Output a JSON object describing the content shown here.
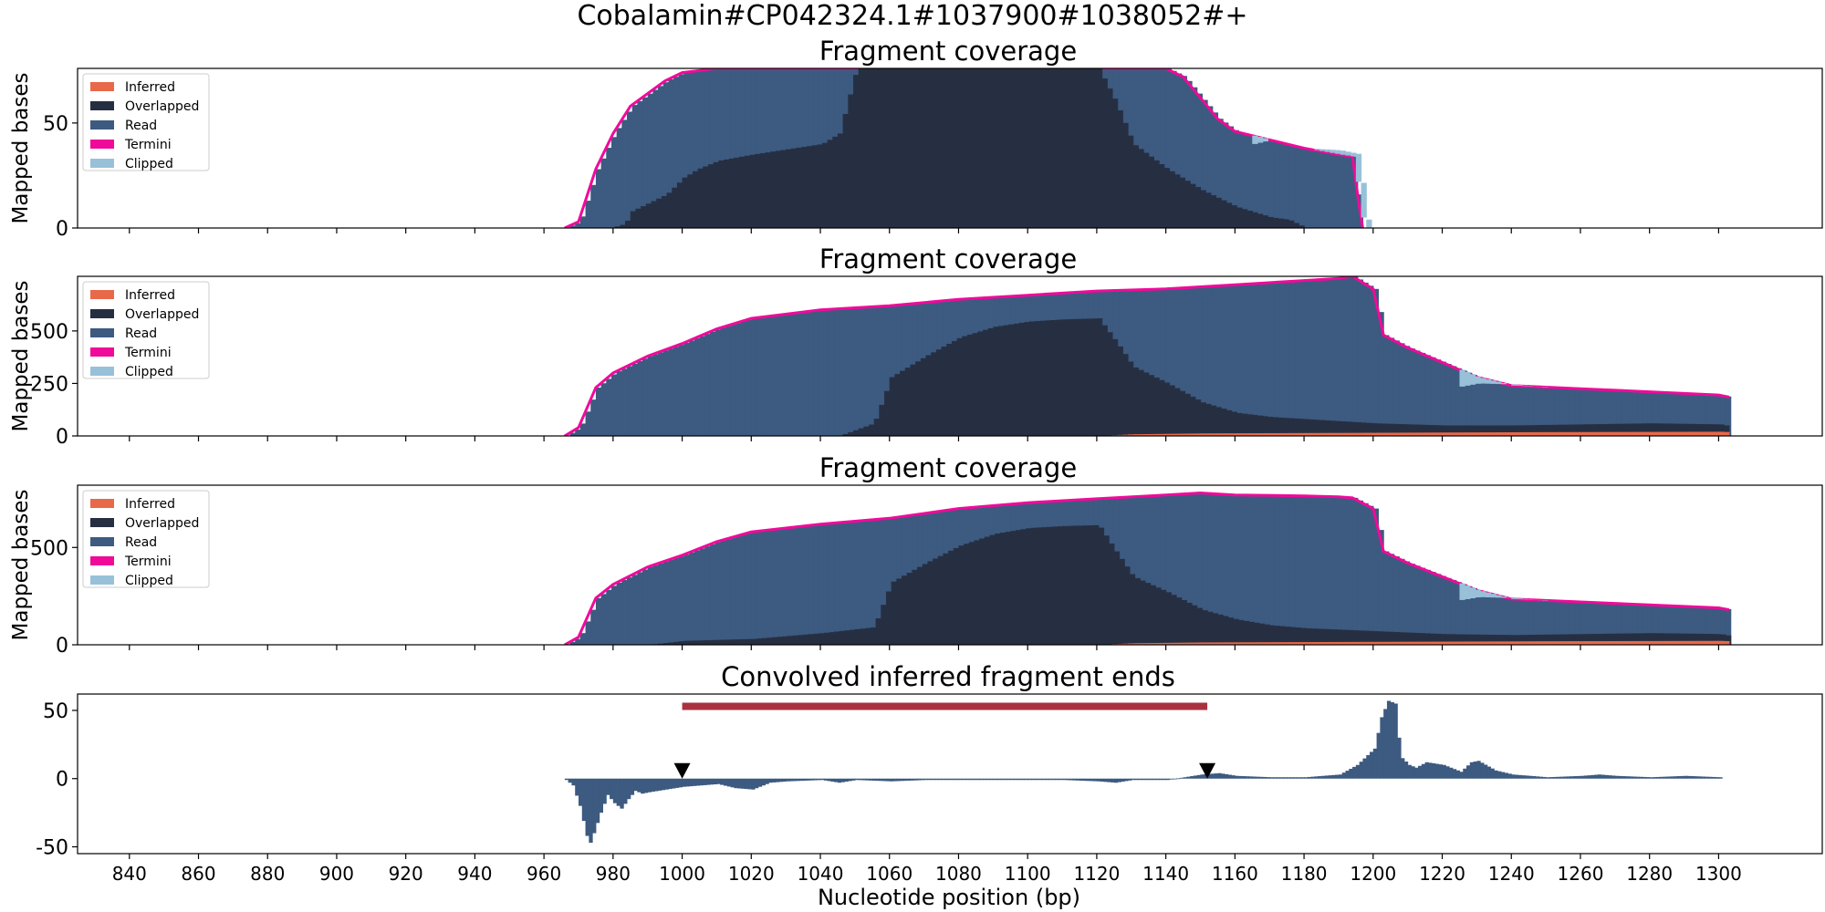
{
  "figure": {
    "suptitle": "Cobalamin#CP042324.1#1037900#1038052#+",
    "xlabel": "Nucleotide position (bp)"
  },
  "colors": {
    "inferred": "#e8694a",
    "overlapped": "#262f42",
    "read": "#3d5a80",
    "termini": "#f00a9a",
    "clipped": "#98c1d9",
    "peak_bar": "#a8323e",
    "marker": "#000000"
  },
  "chart_data": [
    {
      "type": "area",
      "title": "Fragment coverage",
      "ylabel": "Mapped bases",
      "xlim": [
        825,
        1330
      ],
      "ylim": [
        0,
        76
      ],
      "yticks": [
        0,
        50
      ],
      "legend": {
        "placement": "top-left",
        "entries": [
          "Inferred",
          "Overlapped",
          "Read",
          "Termini",
          "Clipped"
        ]
      },
      "series": [
        {
          "name": "Read",
          "x": [
            966,
            970,
            975,
            980,
            985,
            990,
            995,
            1000,
            1010,
            1020,
            1025,
            1050,
            1070,
            1100,
            1125,
            1135,
            1140,
            1145,
            1150,
            1155,
            1160,
            1170,
            1180,
            1190,
            1194,
            1196,
            1197
          ],
          "values": [
            0,
            3,
            28,
            45,
            58,
            64,
            70,
            74,
            76,
            76,
            76,
            76,
            76,
            76,
            76,
            76,
            76,
            72,
            62,
            52,
            46,
            42,
            38,
            35,
            34,
            10,
            0
          ]
        },
        {
          "name": "Overlapped",
          "x": [
            979,
            983,
            985,
            995,
            1000,
            1004,
            1010,
            1020,
            1040,
            1045,
            1050,
            1060,
            1100,
            1110,
            1120,
            1125,
            1130,
            1140,
            1150,
            1160,
            1170,
            1175,
            1180
          ],
          "values": [
            0,
            2,
            8,
            16,
            24,
            28,
            32,
            35,
            40,
            45,
            76,
            76,
            76,
            76,
            76,
            60,
            40,
            28,
            18,
            10,
            5,
            4,
            0
          ]
        },
        {
          "name": "Clipped",
          "x": [
            1165,
            1170,
            1180,
            1190,
            1196,
            1197,
            1199
          ],
          "values": [
            40,
            42,
            38,
            37,
            35,
            8,
            0
          ]
        }
      ]
    },
    {
      "type": "area",
      "title": "Fragment coverage",
      "ylabel": "Mapped bases",
      "xlim": [
        825,
        1330
      ],
      "ylim": [
        0,
        760
      ],
      "yticks": [
        0,
        250,
        500
      ],
      "legend": {
        "placement": "top-left",
        "entries": [
          "Inferred",
          "Overlapped",
          "Read",
          "Termini",
          "Clipped"
        ]
      },
      "series": [
        {
          "name": "Read",
          "x": [
            966,
            970,
            975,
            980,
            990,
            1000,
            1010,
            1020,
            1040,
            1060,
            1080,
            1100,
            1120,
            1140,
            1160,
            1180,
            1190,
            1194,
            1200,
            1203,
            1210,
            1220,
            1230,
            1240,
            1260,
            1280,
            1300,
            1303
          ],
          "values": [
            0,
            40,
            230,
            300,
            380,
            440,
            510,
            560,
            600,
            620,
            650,
            670,
            690,
            700,
            720,
            740,
            750,
            760,
            700,
            480,
            420,
            350,
            280,
            240,
            225,
            210,
            195,
            185
          ]
        },
        {
          "name": "Overlapped",
          "x": [
            1045,
            1050,
            1055,
            1060,
            1070,
            1080,
            1090,
            1100,
            1110,
            1120,
            1125,
            1130,
            1140,
            1150,
            1160,
            1170,
            1180,
            1200,
            1220,
            1240,
            1260,
            1280,
            1300,
            1303
          ],
          "values": [
            0,
            30,
            60,
            280,
            380,
            470,
            520,
            545,
            555,
            560,
            450,
            330,
            250,
            160,
            110,
            90,
            80,
            60,
            50,
            50,
            55,
            60,
            55,
            45
          ]
        },
        {
          "name": "Inferred",
          "x": [
            1120,
            1130,
            1150,
            1200,
            1250,
            1300,
            1303
          ],
          "values": [
            0,
            8,
            12,
            15,
            18,
            20,
            18
          ]
        },
        {
          "name": "Clipped",
          "x": [
            1225,
            1230,
            1240,
            1250
          ],
          "values": [
            235,
            250,
            245,
            230
          ]
        }
      ]
    },
    {
      "type": "area",
      "title": "Fragment coverage",
      "ylabel": "Mapped bases",
      "xlim": [
        825,
        1330
      ],
      "ylim": [
        0,
        820
      ],
      "yticks": [
        0,
        500
      ],
      "legend": {
        "placement": "top-left",
        "entries": [
          "Inferred",
          "Overlapped",
          "Read",
          "Termini",
          "Clipped"
        ]
      },
      "series": [
        {
          "name": "Read",
          "x": [
            966,
            970,
            975,
            980,
            990,
            1000,
            1010,
            1020,
            1040,
            1060,
            1080,
            1100,
            1120,
            1140,
            1150,
            1160,
            1180,
            1190,
            1194,
            1200,
            1203,
            1210,
            1220,
            1230,
            1240,
            1260,
            1280,
            1300,
            1303
          ],
          "values": [
            0,
            40,
            240,
            310,
            400,
            460,
            530,
            580,
            620,
            650,
            700,
            730,
            750,
            770,
            780,
            770,
            765,
            760,
            755,
            700,
            480,
            420,
            350,
            280,
            235,
            220,
            205,
            190,
            180
          ]
        },
        {
          "name": "Overlapped",
          "x": [
            990,
            1000,
            1020,
            1040,
            1050,
            1055,
            1060,
            1070,
            1080,
            1090,
            1100,
            1110,
            1120,
            1125,
            1130,
            1140,
            1150,
            1160,
            1170,
            1180,
            1200,
            1220,
            1240,
            1260,
            1280,
            1300,
            1303
          ],
          "values": [
            0,
            20,
            30,
            60,
            80,
            90,
            320,
            420,
            510,
            570,
            600,
            610,
            615,
            480,
            350,
            270,
            180,
            130,
            100,
            85,
            70,
            55,
            50,
            55,
            60,
            55,
            45
          ]
        },
        {
          "name": "Inferred",
          "x": [
            1120,
            1130,
            1150,
            1200,
            1250,
            1300,
            1303
          ],
          "values": [
            0,
            8,
            12,
            15,
            18,
            20,
            18
          ]
        },
        {
          "name": "Clipped",
          "x": [
            1225,
            1230,
            1240,
            1250
          ],
          "values": [
            230,
            245,
            240,
            225
          ]
        }
      ]
    },
    {
      "type": "bar",
      "title": "Convolved inferred fragment ends",
      "xlim": [
        825,
        1330
      ],
      "ylim": [
        -55,
        62
      ],
      "yticks": [
        -50,
        0,
        50
      ],
      "xticks": [
        840,
        860,
        880,
        900,
        920,
        940,
        960,
        980,
        1000,
        1020,
        1040,
        1060,
        1080,
        1100,
        1120,
        1140,
        1160,
        1180,
        1200,
        1220,
        1240,
        1260,
        1280,
        1300
      ],
      "series": [
        {
          "name": "",
          "x": [
            966,
            968,
            970,
            972,
            973,
            974,
            976,
            978,
            980,
            982,
            984,
            986,
            988,
            990,
            995,
            1000,
            1005,
            1010,
            1015,
            1020,
            1025,
            1030,
            1040,
            1045,
            1050,
            1060,
            1070,
            1080,
            1090,
            1100,
            1110,
            1120,
            1125,
            1130,
            1140,
            1150,
            1155,
            1160,
            1170,
            1180,
            1190,
            1195,
            1200,
            1202,
            1204,
            1206,
            1207,
            1208,
            1210,
            1212,
            1215,
            1220,
            1225,
            1228,
            1230,
            1235,
            1240,
            1250,
            1260,
            1265,
            1270,
            1280,
            1290,
            1300
          ],
          "values": [
            -1,
            -5,
            -20,
            -42,
            -47,
            -40,
            -25,
            -12,
            -18,
            -22,
            -15,
            -9,
            -11,
            -10,
            -8,
            -6,
            -5,
            -4,
            -7,
            -8,
            -3,
            -2,
            -1,
            -3,
            -1,
            -2,
            -1,
            -1,
            -1,
            -1,
            -1,
            -2,
            -3,
            -1,
            -1,
            3,
            4,
            2,
            1,
            1,
            3,
            10,
            22,
            45,
            57,
            55,
            30,
            15,
            10,
            8,
            12,
            10,
            5,
            12,
            13,
            6,
            3,
            1,
            2,
            3,
            2,
            1,
            2,
            1
          ]
        }
      ],
      "annotations": [
        {
          "type": "span",
          "x_start": 1000,
          "x_end": 1152,
          "y": 53
        },
        {
          "type": "marker",
          "x": 1000,
          "y": 6
        },
        {
          "type": "marker",
          "x": 1152,
          "y": 6
        }
      ]
    }
  ]
}
